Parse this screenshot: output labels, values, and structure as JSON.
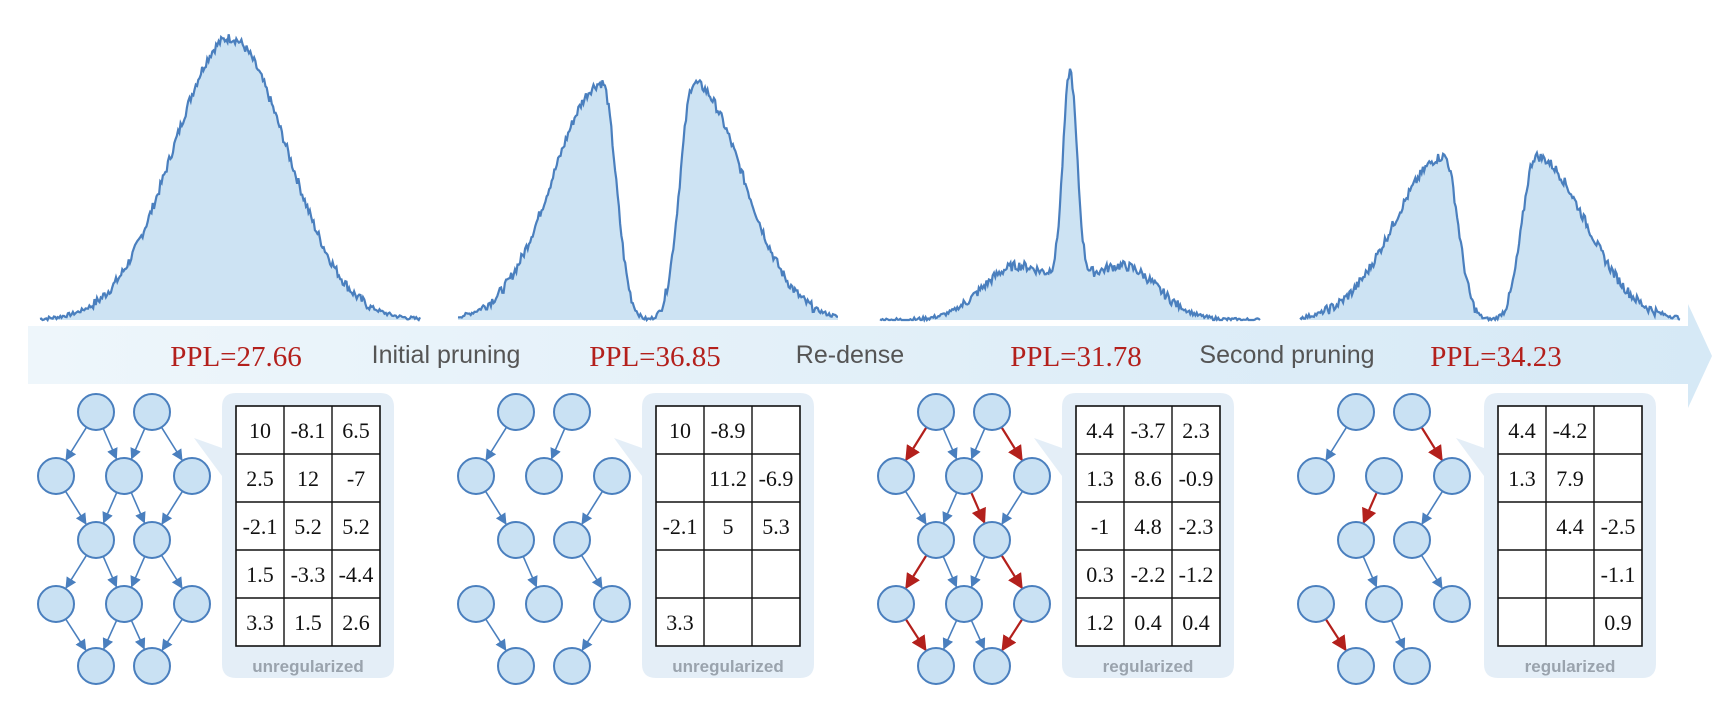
{
  "colors": {
    "banner": "#e1eff8",
    "distribution_fill": "#cde3f3",
    "distribution_stroke": "#4a7fbe",
    "node_fill": "#c9e1f3",
    "node_stroke": "#4a7fbe",
    "edge_default": "#4a7fbe",
    "edge_highlight": "#b3201c",
    "ppl_text": "#b3201c",
    "callout_bg": "#e4eef7"
  },
  "transitions": [
    "Initial pruning",
    "Re-dense",
    "Second pruning"
  ],
  "stages": [
    {
      "ppl": "PPL=27.66",
      "distribution": "unimodal",
      "caption": "unregularized",
      "matrix": [
        [
          "10",
          "-8.1",
          "6.5"
        ],
        [
          "2.5",
          "12",
          "-7"
        ],
        [
          "-2.1",
          "5.2",
          "5.2"
        ],
        [
          "1.5",
          "-3.3",
          "-4.4"
        ],
        [
          "3.3",
          "1.5",
          "2.6"
        ]
      ]
    },
    {
      "ppl": "PPL=36.85",
      "distribution": "bimodal",
      "caption": "unregularized",
      "matrix": [
        [
          "10",
          "-8.9",
          ""
        ],
        [
          "",
          "11.2",
          "-6.9"
        ],
        [
          "-2.1",
          "5",
          "5.3"
        ],
        [
          "",
          "",
          ""
        ],
        [
          "3.3",
          "",
          ""
        ]
      ]
    },
    {
      "ppl": "PPL=31.78",
      "distribution": "central-peak",
      "caption": "regularized",
      "matrix": [
        [
          "4.4",
          "-3.7",
          "2.3"
        ],
        [
          "1.3",
          "8.6",
          "-0.9"
        ],
        [
          "-1",
          "4.8",
          "-2.3"
        ],
        [
          "0.3",
          "-2.2",
          "-1.2"
        ],
        [
          "1.2",
          "0.4",
          "0.4"
        ]
      ]
    },
    {
      "ppl": "PPL=34.23",
      "distribution": "bimodal",
      "caption": "regularized",
      "matrix": [
        [
          "4.4",
          "-4.2",
          ""
        ],
        [
          "1.3",
          "7.9",
          ""
        ],
        [
          "",
          "4.4",
          "-2.5"
        ],
        [
          "",
          "",
          "-1.1"
        ],
        [
          "",
          "",
          "0.9"
        ]
      ]
    }
  ]
}
